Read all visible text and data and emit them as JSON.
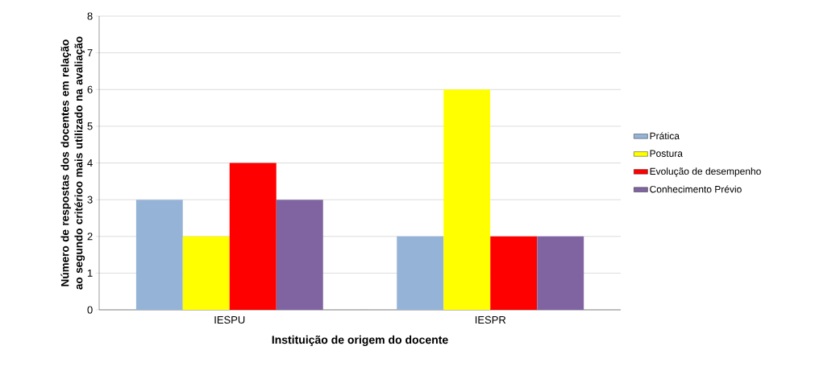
{
  "chart_data": {
    "type": "bar",
    "xlabel": "Instituição de origem do docente",
    "ylabel": "Número de respostas dos docentes em relação ao segundo critérioo mais utilizado na avaliação",
    "categories": [
      "IESPU",
      "IESPR"
    ],
    "series": [
      {
        "name": "Prática",
        "color": "#95b3d7",
        "values": [
          3,
          2
        ]
      },
      {
        "name": "Postura",
        "color": "#ffff00",
        "values": [
          2,
          6
        ]
      },
      {
        "name": "Evolução de desempenho",
        "color": "#ff0000",
        "values": [
          4,
          2
        ]
      },
      {
        "name": "Conhecimento Prévio",
        "color": "#8064a2",
        "values": [
          3,
          2
        ]
      }
    ],
    "ylim": [
      0,
      8
    ],
    "yticks": [
      0,
      1,
      2,
      3,
      4,
      5,
      6,
      7,
      8
    ],
    "grid": "y",
    "legend": "right"
  }
}
